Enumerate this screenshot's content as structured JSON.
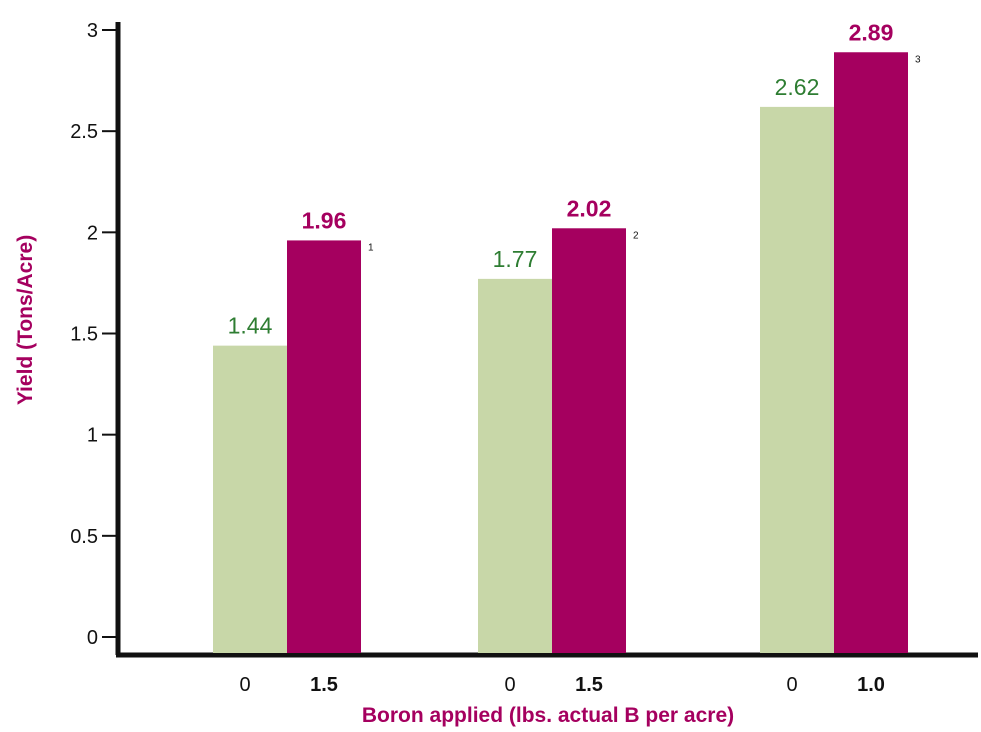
{
  "chart_data": {
    "type": "bar",
    "xlabel": "Boron applied (lbs. actual B per acre)",
    "ylabel": "Yield (Tons/Acre)",
    "ylim": [
      0,
      3
    ],
    "yticks": [
      "0",
      "0.5",
      "1",
      "1.5",
      "2",
      "2.5",
      "3"
    ],
    "colors": {
      "control": "#c8d7a8",
      "boron": "#a5005f",
      "control_label": "#2e7d32",
      "boron_label": "#a5005f",
      "title": "#a5005f"
    },
    "groups": [
      {
        "footnote": "1",
        "bars": [
          {
            "x": "0",
            "value": 1.44,
            "label": "1.44"
          },
          {
            "x": "1.5",
            "value": 1.96,
            "label": "1.96"
          }
        ]
      },
      {
        "footnote": "2",
        "bars": [
          {
            "x": "0",
            "value": 1.77,
            "label": "1.77"
          },
          {
            "x": "1.5",
            "value": 2.02,
            "label": "2.02"
          }
        ]
      },
      {
        "footnote": "3",
        "bars": [
          {
            "x": "0",
            "value": 2.62,
            "label": "2.62"
          },
          {
            "x": "1.0",
            "value": 2.89,
            "label": "2.89"
          }
        ]
      }
    ],
    "grid": false,
    "legend": "none"
  }
}
